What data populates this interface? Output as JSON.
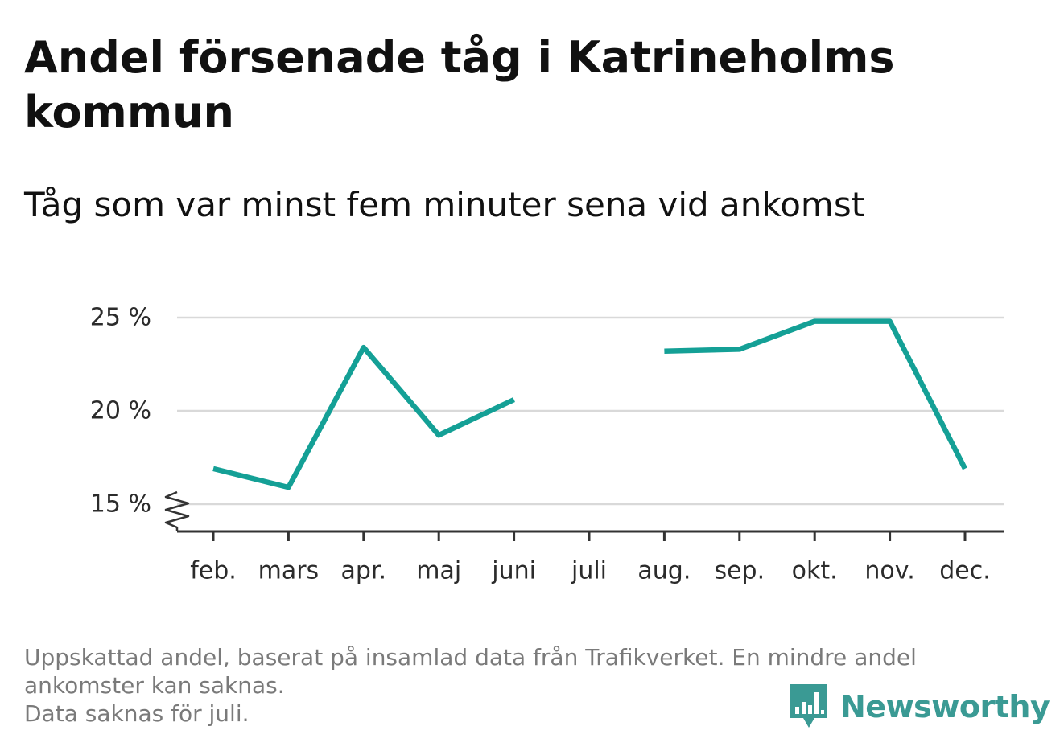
{
  "header": {
    "title": "Andel försenade tåg i Katrineholms kommun",
    "subtitle": "Tåg som var minst fem minuter sena vid ankomst"
  },
  "chart_data": {
    "type": "line",
    "title": "Andel försenade tåg i Katrineholms kommun",
    "subtitle": "Tåg som var minst fem minuter sena vid ankomst",
    "xlabel": "",
    "ylabel": "",
    "categories": [
      "feb.",
      "mars",
      "apr.",
      "maj",
      "juni",
      "juli",
      "aug.",
      "sep.",
      "okt.",
      "nov.",
      "dec."
    ],
    "series": [
      {
        "values": [
          16.9,
          15.9,
          23.4,
          18.7,
          20.6,
          null,
          23.2,
          23.3,
          24.8,
          24.8,
          16.9
        ],
        "color": "#14a096"
      }
    ],
    "yticks": [
      15,
      20,
      25
    ],
    "ytick_labels": [
      "15 %",
      "20 %",
      "25 %"
    ],
    "ylim": [
      13.5,
      26
    ],
    "y_axis_break": true,
    "grid": true,
    "legend": "none"
  },
  "footnote": {
    "lines": [
      "Uppskattad andel, baserat på insamlad data från Trafikverket. En mindre andel ankomster kan saknas.",
      "Data saknas för juli."
    ]
  },
  "brand": {
    "name": "Newsworthy",
    "color": "#3a9a94",
    "icon": "bar-chart-speech-bubble-icon"
  },
  "colors": {
    "line": "#14a096",
    "grid": "#d9d9d9",
    "axis": "#333333",
    "footnote": "#7a7a7a"
  }
}
